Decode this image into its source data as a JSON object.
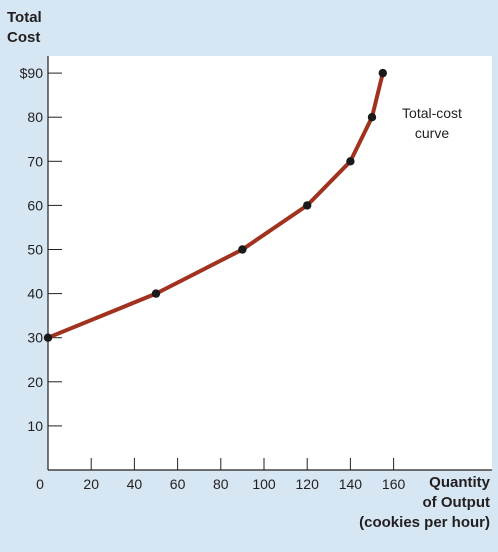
{
  "colors": {
    "background": "#d6e6f2",
    "plot_background": "#ffffff",
    "curve": "#a0321f",
    "point": "#1a1a1a",
    "axis": "#231f20"
  },
  "chart_data": {
    "type": "line",
    "title": "",
    "ylabel_lines": [
      "Total",
      "Cost"
    ],
    "xlabel_lines": [
      "Quantity",
      "of Output",
      "(cookies per hour)"
    ],
    "xlim": [
      0,
      170
    ],
    "ylim": [
      0,
      95
    ],
    "x_ticks": [
      0,
      20,
      40,
      60,
      80,
      100,
      120,
      140,
      160
    ],
    "x_tick_labels": [
      "0",
      "20",
      "40",
      "60",
      "80",
      "100",
      "120",
      "140",
      "160"
    ],
    "y_ticks": [
      10,
      20,
      30,
      40,
      50,
      60,
      70,
      80,
      90
    ],
    "y_tick_labels": [
      "10",
      "20",
      "30",
      "40",
      "50",
      "60",
      "70",
      "80",
      "$90"
    ],
    "grid": false,
    "legend": "none",
    "series": [
      {
        "x": [
          0,
          50,
          90,
          120,
          140,
          150,
          155
        ],
        "y": [
          30,
          40,
          50,
          60,
          70,
          80,
          90
        ]
      }
    ],
    "annotation_lines": [
      "Total-cost",
      "curve"
    ]
  }
}
